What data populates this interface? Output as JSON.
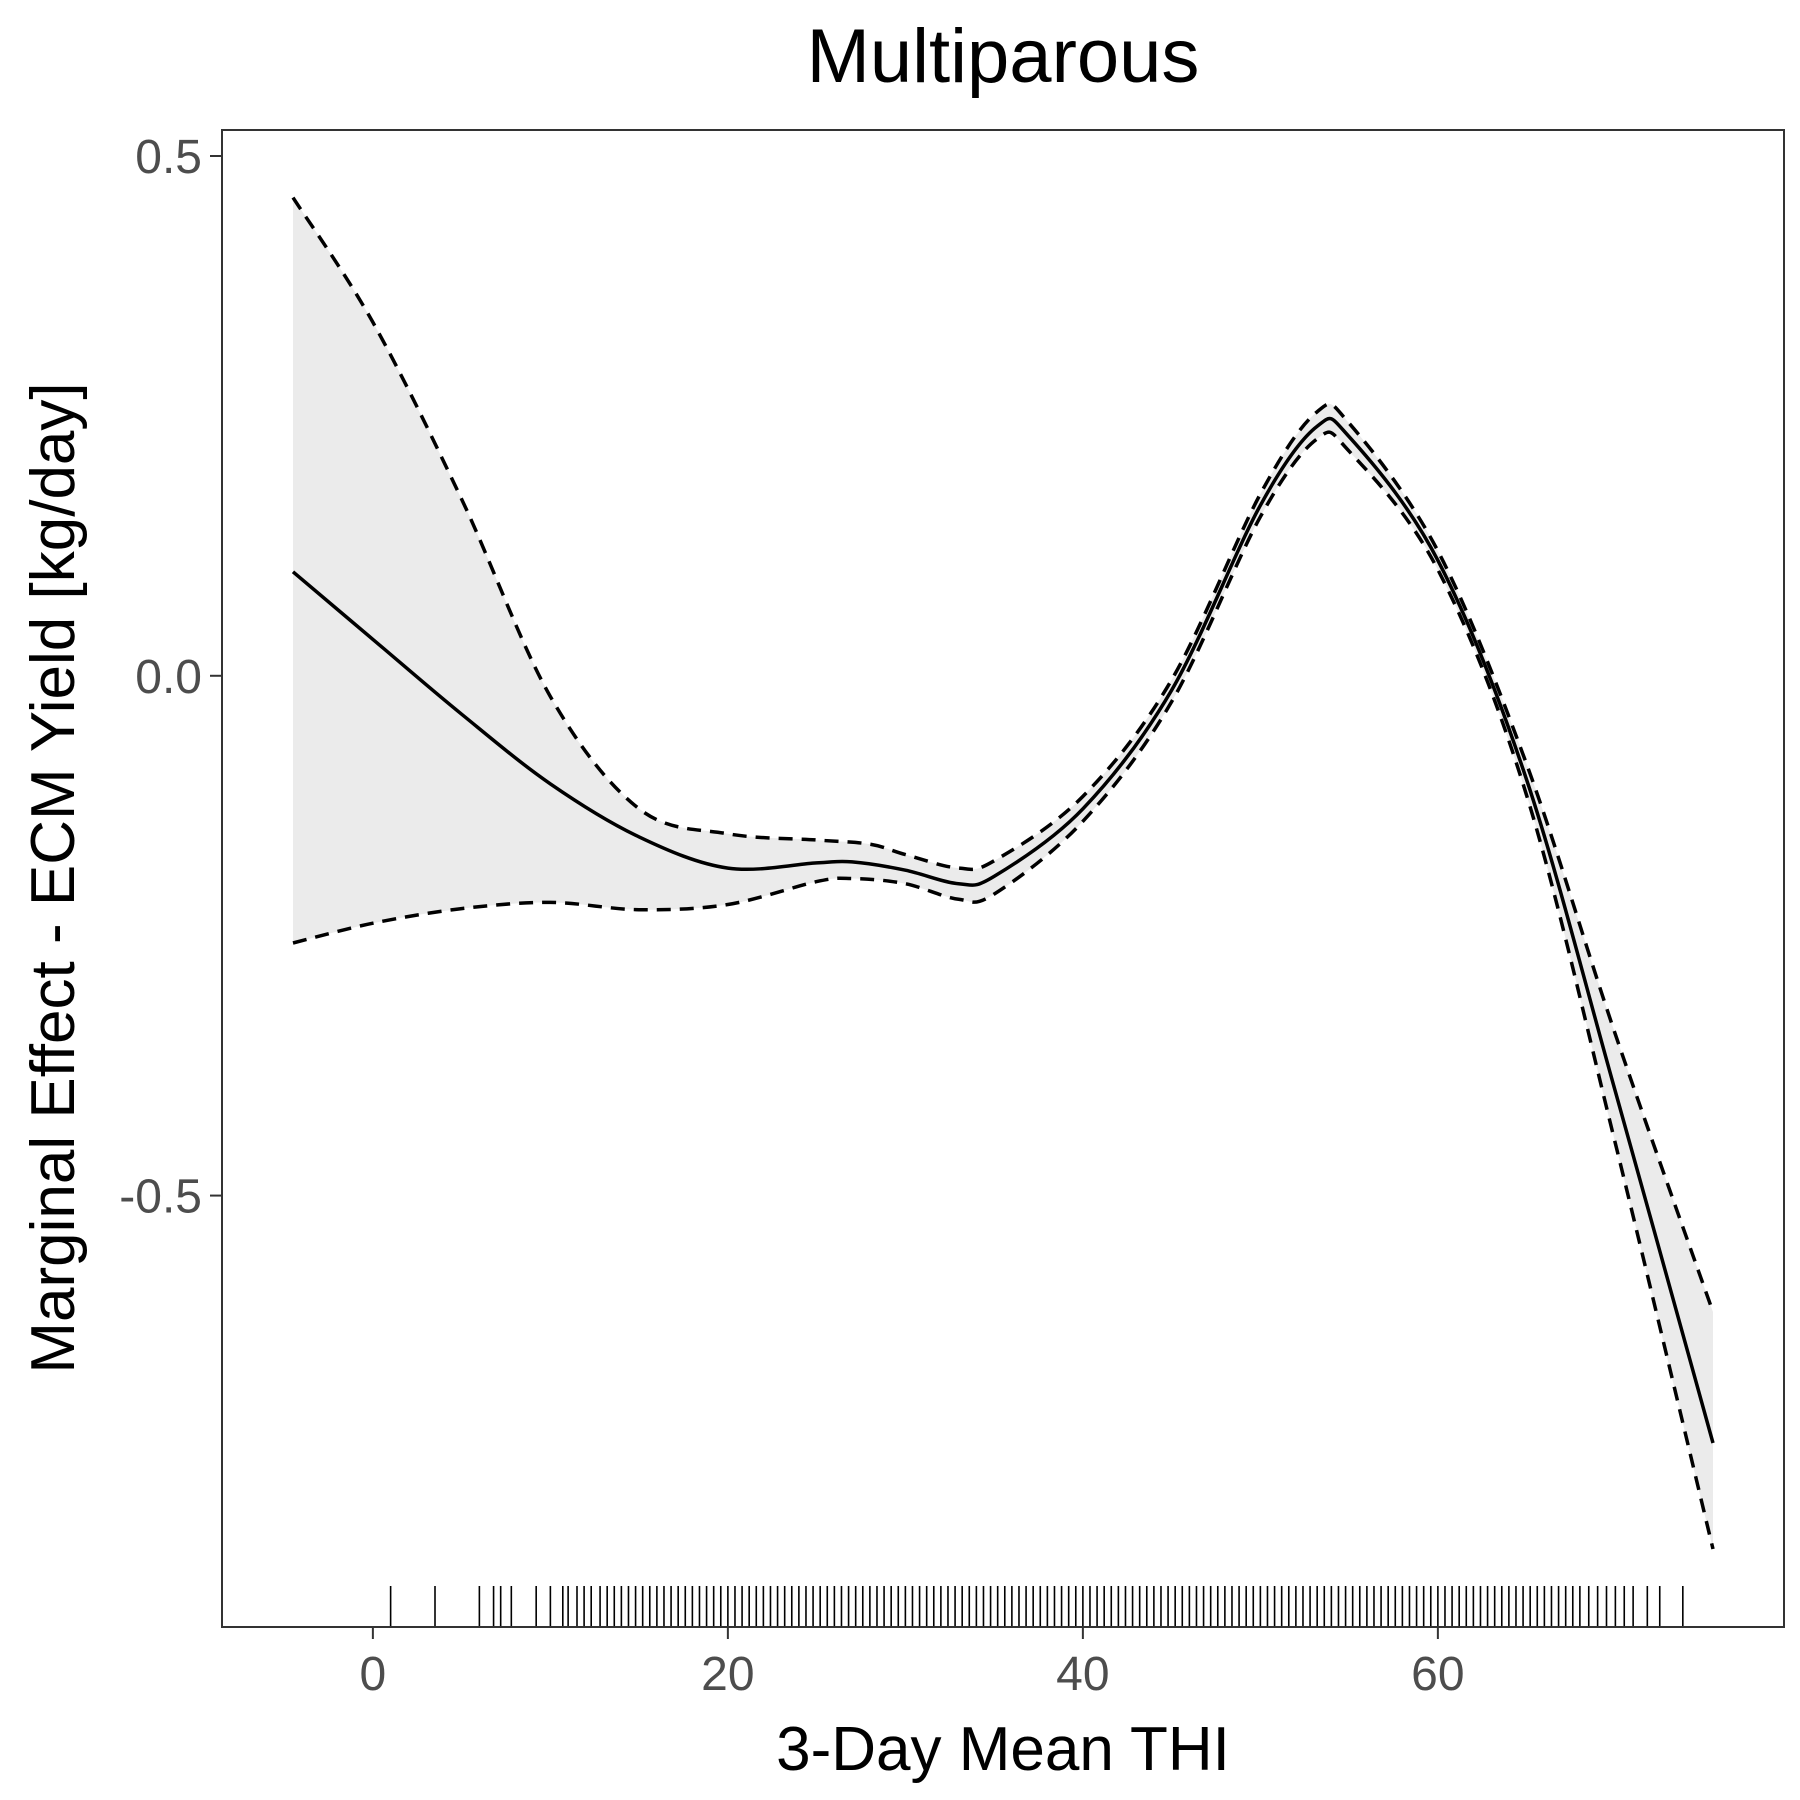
{
  "chart_data": {
    "type": "line",
    "title": "Multiparous",
    "xlabel": "3-Day Mean THI",
    "ylabel": "Marginal Effect - ECM Yield [kg/day]",
    "xlim": [
      -8.5,
      79.5
    ],
    "ylim": [
      -0.915,
      0.525
    ],
    "xticks": [
      0,
      20,
      40,
      60
    ],
    "xtick_labels": [
      "0",
      "20",
      "40",
      "60"
    ],
    "yticks": [
      -0.5,
      0.0,
      0.5
    ],
    "ytick_labels": [
      "-0.5",
      "0.0",
      "0.5"
    ],
    "grid": false,
    "legend": "none",
    "colors": {
      "line": "#000000",
      "ribbon": "#ebebeb",
      "panel_border": "#333333",
      "tick_text": "#4d4d4d"
    },
    "series": [
      {
        "role": "estimate",
        "style": "solid",
        "x": [
          -4.5,
          0,
          5,
          10,
          15,
          20,
          25,
          27,
          30,
          33,
          35,
          40,
          45,
          50,
          53.2,
          55,
          60,
          65,
          70,
          75.5
        ],
        "y": [
          0.1,
          0.035,
          -0.037,
          -0.104,
          -0.155,
          -0.185,
          -0.18,
          -0.179,
          -0.187,
          -0.2,
          -0.193,
          -0.128,
          -0.014,
          0.164,
          0.24,
          0.23,
          0.111,
          -0.1,
          -0.4,
          -0.738
        ]
      },
      {
        "role": "upper bound",
        "style": "dashed",
        "x": [
          -4.5,
          0,
          5,
          10,
          15,
          20,
          25,
          28,
          30,
          33,
          35,
          40,
          45,
          50,
          53.2,
          55,
          60,
          65,
          70,
          75.5
        ],
        "y": [
          0.46,
          0.34,
          0.17,
          -0.02,
          -0.128,
          -0.152,
          -0.158,
          -0.162,
          -0.172,
          -0.185,
          -0.178,
          -0.116,
          -0.004,
          0.175,
          0.254,
          0.243,
          0.12,
          -0.085,
          -0.345,
          -0.612
        ]
      },
      {
        "role": "lower bound",
        "style": "dashed",
        "x": [
          -4.5,
          0,
          5,
          10,
          15,
          20,
          25,
          27,
          30,
          33,
          35,
          40,
          45,
          50,
          53.2,
          55,
          60,
          65,
          70,
          75.5
        ],
        "y": [
          -0.257,
          -0.238,
          -0.224,
          -0.218,
          -0.225,
          -0.22,
          -0.198,
          -0.195,
          -0.2,
          -0.215,
          -0.21,
          -0.14,
          -0.025,
          0.153,
          0.228,
          0.216,
          0.102,
          -0.115,
          -0.45,
          -0.84
        ]
      }
    ],
    "rug_x": [
      1,
      3.5,
      6,
      6.8,
      7.2,
      7.8,
      9.2,
      10,
      10.7,
      11,
      11.5,
      11.9,
      12.3,
      12.8,
      13.2,
      13.6,
      14,
      14.4,
      14.8,
      15.2,
      15.6,
      16,
      16.4,
      16.8,
      17.2,
      17.6,
      18,
      18.4,
      18.8,
      19.2,
      19.6,
      20,
      20.4,
      20.8,
      21.2,
      21.6,
      22,
      22.4,
      22.8,
      23.2,
      23.6,
      24,
      24.4,
      24.8,
      25.2,
      25.6,
      26,
      26.4,
      26.8,
      27.2,
      27.6,
      28,
      28.4,
      28.8,
      29.2,
      29.6,
      30,
      30.4,
      30.8,
      31.2,
      31.6,
      32,
      32.4,
      32.8,
      33.2,
      33.6,
      34,
      34.4,
      34.8,
      35.2,
      35.6,
      36,
      36.4,
      36.8,
      37.2,
      37.6,
      38,
      38.4,
      38.8,
      39.2,
      39.6,
      40,
      40.4,
      40.8,
      41.2,
      41.6,
      42,
      42.4,
      42.8,
      43.2,
      43.6,
      44,
      44.4,
      44.8,
      45.2,
      45.6,
      46,
      46.4,
      46.8,
      47.2,
      47.6,
      48,
      48.4,
      48.8,
      49.2,
      49.6,
      50,
      50.4,
      50.8,
      51.2,
      51.6,
      52,
      52.4,
      52.8,
      53.2,
      53.6,
      54,
      54.4,
      54.8,
      55.2,
      55.6,
      56,
      56.4,
      56.8,
      57.2,
      57.6,
      58,
      58.4,
      58.8,
      59.2,
      59.6,
      60,
      60.4,
      60.8,
      61.2,
      61.6,
      62,
      62.4,
      62.8,
      63.2,
      63.6,
      64,
      64.4,
      64.8,
      65.2,
      65.6,
      66,
      66.4,
      66.8,
      67.2,
      67.6,
      68,
      68.5,
      69,
      69.5,
      70,
      70.5,
      71,
      71.8,
      72.5,
      73.8
    ]
  }
}
